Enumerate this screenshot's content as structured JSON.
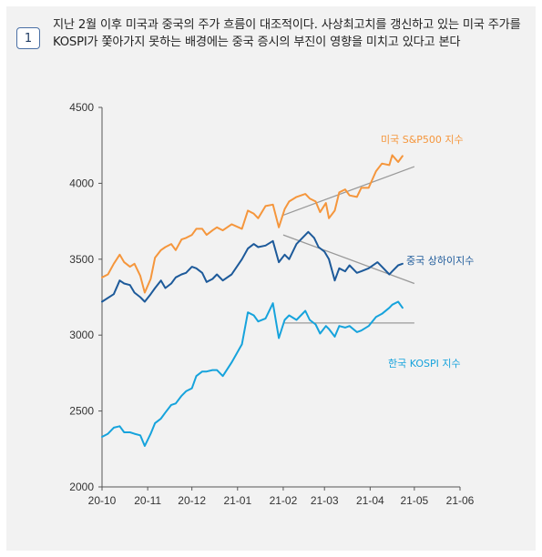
{
  "figure": {
    "number": "1",
    "caption": "지난 2월 이후 미국과 중국의 주가 흐름이 대조적이다. 사상최고치를 갱신하고 있는 미국 주가를 KOSPI가 쫓아가지 못하는 배경에는 중국 증시의 부진이 영향을 미치고 있다고 본다"
  },
  "colors": {
    "sp500": "#f5963c",
    "shanghai": "#1d5a9a",
    "kospi": "#16a3dc",
    "trend": "#999999",
    "axis": "#555555"
  },
  "chart_data": {
    "type": "line",
    "x_tick_labels": [
      "20-10",
      "20-11",
      "20-12",
      "21-01",
      "21-02",
      "21-03",
      "21-04",
      "21-05",
      "21-06"
    ],
    "y_ticks": [
      2000,
      2500,
      3000,
      3500,
      4000,
      4500
    ],
    "ylim": [
      2000,
      4500
    ],
    "xlim": [
      "2020-10-01",
      "2021-06-01"
    ],
    "series": [
      {
        "name": "미국 S&P500 지수",
        "color_key": "sp500",
        "points": [
          [
            "2020-10-01",
            3380
          ],
          [
            "2020-10-05",
            3400
          ],
          [
            "2020-10-09",
            3470
          ],
          [
            "2020-10-13",
            3530
          ],
          [
            "2020-10-16",
            3480
          ],
          [
            "2020-10-20",
            3450
          ],
          [
            "2020-10-23",
            3470
          ],
          [
            "2020-10-27",
            3390
          ],
          [
            "2020-10-30",
            3280
          ],
          [
            "2020-11-03",
            3370
          ],
          [
            "2020-11-06",
            3510
          ],
          [
            "2020-11-10",
            3560
          ],
          [
            "2020-11-13",
            3580
          ],
          [
            "2020-11-17",
            3600
          ],
          [
            "2020-11-20",
            3560
          ],
          [
            "2020-11-24",
            3630
          ],
          [
            "2020-11-27",
            3640
          ],
          [
            "2020-12-01",
            3660
          ],
          [
            "2020-12-04",
            3700
          ],
          [
            "2020-12-08",
            3700
          ],
          [
            "2020-12-11",
            3660
          ],
          [
            "2020-12-15",
            3690
          ],
          [
            "2020-12-18",
            3710
          ],
          [
            "2020-12-22",
            3690
          ],
          [
            "2020-12-28",
            3730
          ],
          [
            "2021-01-04",
            3700
          ],
          [
            "2021-01-08",
            3820
          ],
          [
            "2021-01-12",
            3800
          ],
          [
            "2021-01-15",
            3770
          ],
          [
            "2021-01-20",
            3850
          ],
          [
            "2021-01-25",
            3860
          ],
          [
            "2021-01-29",
            3710
          ],
          [
            "2021-02-02",
            3830
          ],
          [
            "2021-02-05",
            3880
          ],
          [
            "2021-02-10",
            3910
          ],
          [
            "2021-02-16",
            3930
          ],
          [
            "2021-02-19",
            3900
          ],
          [
            "2021-02-23",
            3880
          ],
          [
            "2021-02-26",
            3810
          ],
          [
            "2021-03-02",
            3870
          ],
          [
            "2021-03-04",
            3770
          ],
          [
            "2021-03-08",
            3820
          ],
          [
            "2021-03-11",
            3940
          ],
          [
            "2021-03-15",
            3960
          ],
          [
            "2021-03-18",
            3920
          ],
          [
            "2021-03-23",
            3910
          ],
          [
            "2021-03-26",
            3970
          ],
          [
            "2021-03-31",
            3970
          ],
          [
            "2021-04-05",
            4080
          ],
          [
            "2021-04-09",
            4130
          ],
          [
            "2021-04-14",
            4120
          ],
          [
            "2021-04-16",
            4185
          ],
          [
            "2021-04-20",
            4140
          ],
          [
            "2021-04-23",
            4180
          ]
        ]
      },
      {
        "name": "중국 상하이지수",
        "color_key": "shanghai",
        "points": [
          [
            "2020-10-01",
            3220
          ],
          [
            "2020-10-09",
            3270
          ],
          [
            "2020-10-13",
            3360
          ],
          [
            "2020-10-16",
            3340
          ],
          [
            "2020-10-20",
            3330
          ],
          [
            "2020-10-23",
            3280
          ],
          [
            "2020-10-27",
            3250
          ],
          [
            "2020-10-30",
            3220
          ],
          [
            "2020-11-03",
            3270
          ],
          [
            "2020-11-06",
            3310
          ],
          [
            "2020-11-10",
            3360
          ],
          [
            "2020-11-13",
            3310
          ],
          [
            "2020-11-17",
            3340
          ],
          [
            "2020-11-20",
            3380
          ],
          [
            "2020-11-24",
            3400
          ],
          [
            "2020-11-27",
            3410
          ],
          [
            "2020-12-01",
            3450
          ],
          [
            "2020-12-04",
            3440
          ],
          [
            "2020-12-08",
            3410
          ],
          [
            "2020-12-11",
            3350
          ],
          [
            "2020-12-15",
            3370
          ],
          [
            "2020-12-18",
            3400
          ],
          [
            "2020-12-22",
            3360
          ],
          [
            "2020-12-28",
            3400
          ],
          [
            "2021-01-04",
            3500
          ],
          [
            "2021-01-08",
            3570
          ],
          [
            "2021-01-12",
            3600
          ],
          [
            "2021-01-15",
            3580
          ],
          [
            "2021-01-20",
            3590
          ],
          [
            "2021-01-25",
            3620
          ],
          [
            "2021-01-29",
            3480
          ],
          [
            "2021-02-02",
            3530
          ],
          [
            "2021-02-05",
            3500
          ],
          [
            "2021-02-10",
            3600
          ],
          [
            "2021-02-18",
            3680
          ],
          [
            "2021-02-22",
            3640
          ],
          [
            "2021-02-25",
            3580
          ],
          [
            "2021-03-01",
            3550
          ],
          [
            "2021-03-04",
            3500
          ],
          [
            "2021-03-08",
            3360
          ],
          [
            "2021-03-11",
            3440
          ],
          [
            "2021-03-15",
            3420
          ],
          [
            "2021-03-18",
            3460
          ],
          [
            "2021-03-23",
            3410
          ],
          [
            "2021-03-26",
            3420
          ],
          [
            "2021-03-31",
            3440
          ],
          [
            "2021-04-06",
            3480
          ],
          [
            "2021-04-09",
            3450
          ],
          [
            "2021-04-14",
            3400
          ],
          [
            "2021-04-16",
            3420
          ],
          [
            "2021-04-20",
            3460
          ],
          [
            "2021-04-23",
            3470
          ]
        ]
      },
      {
        "name": "한국 KOSPI 지수",
        "color_key": "kospi",
        "points": [
          [
            "2020-10-01",
            2330
          ],
          [
            "2020-10-05",
            2350
          ],
          [
            "2020-10-09",
            2390
          ],
          [
            "2020-10-13",
            2400
          ],
          [
            "2020-10-16",
            2360
          ],
          [
            "2020-10-20",
            2360
          ],
          [
            "2020-10-23",
            2350
          ],
          [
            "2020-10-27",
            2340
          ],
          [
            "2020-10-30",
            2270
          ],
          [
            "2020-11-03",
            2350
          ],
          [
            "2020-11-06",
            2420
          ],
          [
            "2020-11-10",
            2450
          ],
          [
            "2020-11-13",
            2490
          ],
          [
            "2020-11-17",
            2540
          ],
          [
            "2020-11-20",
            2550
          ],
          [
            "2020-11-24",
            2600
          ],
          [
            "2020-11-27",
            2630
          ],
          [
            "2020-12-01",
            2650
          ],
          [
            "2020-12-04",
            2730
          ],
          [
            "2020-12-08",
            2760
          ],
          [
            "2020-12-11",
            2760
          ],
          [
            "2020-12-15",
            2770
          ],
          [
            "2020-12-18",
            2770
          ],
          [
            "2020-12-22",
            2730
          ],
          [
            "2020-12-28",
            2820
          ],
          [
            "2021-01-04",
            2940
          ],
          [
            "2021-01-08",
            3150
          ],
          [
            "2021-01-12",
            3130
          ],
          [
            "2021-01-15",
            3090
          ],
          [
            "2021-01-20",
            3110
          ],
          [
            "2021-01-25",
            3210
          ],
          [
            "2021-01-29",
            2980
          ],
          [
            "2021-02-02",
            3100
          ],
          [
            "2021-02-05",
            3130
          ],
          [
            "2021-02-10",
            3100
          ],
          [
            "2021-02-16",
            3160
          ],
          [
            "2021-02-19",
            3100
          ],
          [
            "2021-02-23",
            3070
          ],
          [
            "2021-02-26",
            3010
          ],
          [
            "2021-03-02",
            3060
          ],
          [
            "2021-03-04",
            3040
          ],
          [
            "2021-03-08",
            2990
          ],
          [
            "2021-03-11",
            3060
          ],
          [
            "2021-03-15",
            3050
          ],
          [
            "2021-03-18",
            3060
          ],
          [
            "2021-03-23",
            3020
          ],
          [
            "2021-03-26",
            3030
          ],
          [
            "2021-03-31",
            3060
          ],
          [
            "2021-04-05",
            3120
          ],
          [
            "2021-04-09",
            3140
          ],
          [
            "2021-04-14",
            3180
          ],
          [
            "2021-04-16",
            3200
          ],
          [
            "2021-04-20",
            3220
          ],
          [
            "2021-04-23",
            3180
          ]
        ]
      }
    ],
    "trend_lines": [
      {
        "series": "미국 S&P500 지수",
        "from": [
          "2021-02-01",
          3790
        ],
        "to": [
          "2021-05-01",
          4110
        ]
      },
      {
        "series": "중국 상하이지수",
        "from": [
          "2021-02-01",
          3660
        ],
        "to": [
          "2021-05-01",
          3340
        ]
      },
      {
        "series": "한국 KOSPI 지수",
        "from": [
          "2021-02-01",
          3080
        ],
        "to": [
          "2021-05-01",
          3080
        ]
      }
    ]
  }
}
